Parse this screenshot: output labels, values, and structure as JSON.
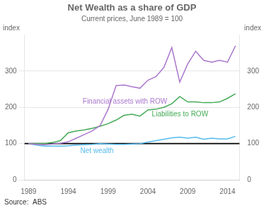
{
  "chart_data": {
    "type": "line",
    "title": "Net Wealth as a share of GDP",
    "subtitle": "Current prices, June 1989 = 100",
    "ylabel": "index",
    "y2label": "index",
    "source": "Source:  ABS",
    "x": [
      1989,
      1990,
      1991,
      1992,
      1993,
      1994,
      1995,
      1996,
      1997,
      1998,
      1999,
      2000,
      2001,
      2002,
      2003,
      2004,
      2005,
      2006,
      2007,
      2008,
      2009,
      2010,
      2011,
      2012,
      2013,
      2014,
      2015
    ],
    "series": [
      {
        "name": "Financial assets with ROW",
        "color": "#aa77cc",
        "values": [
          100,
          98,
          97,
          99,
          101,
          105,
          115,
          125,
          135,
          150,
          195,
          260,
          262,
          257,
          253,
          275,
          285,
          310,
          365,
          270,
          320,
          355,
          330,
          325,
          330,
          325,
          370
        ]
      },
      {
        "name": "Liabilities to ROW",
        "color": "#44aa55",
        "values": [
          100,
          100,
          100,
          103,
          108,
          130,
          135,
          138,
          142,
          148,
          155,
          165,
          178,
          181,
          176,
          193,
          195,
          200,
          210,
          230,
          215,
          215,
          213,
          213,
          215,
          225,
          238
        ]
      },
      {
        "name": "Net wealth",
        "color": "#55bbee",
        "values": [
          100,
          96,
          93,
          93,
          93,
          94,
          96,
          97,
          98,
          100,
          99,
          98,
          98,
          99,
          100,
          104,
          108,
          112,
          116,
          118,
          115,
          118,
          112,
          115,
          113,
          113,
          120
        ]
      }
    ],
    "annotations": [
      {
        "text": "Financial assets with ROW",
        "x": 1995.8,
        "y": 210,
        "color": "#aa77cc"
      },
      {
        "text": "Liabilities to ROW",
        "x": 2004.5,
        "y": 175,
        "color": "#44aa55"
      },
      {
        "text": "Net wealth",
        "x": 1995.5,
        "y": 74,
        "color": "#55bbee"
      }
    ],
    "reference_lines": [
      {
        "y": 100,
        "color": "black"
      }
    ],
    "xlim": [
      1988.5,
      2015.5
    ],
    "xticks": [
      1989,
      1994,
      1999,
      2004,
      2009,
      2014
    ],
    "ylim": [
      0,
      400
    ],
    "yticks": [
      0,
      100,
      200,
      300
    ],
    "y2lim": [
      0,
      400
    ],
    "y2ticks": [
      0,
      100,
      200,
      300
    ],
    "grid": "y",
    "legend": false
  }
}
